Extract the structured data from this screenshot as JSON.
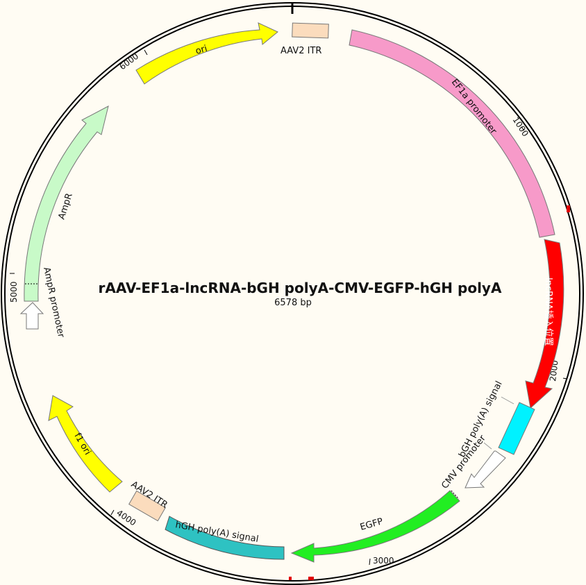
{
  "title": "rAAV-EF1a-lncRNA-bGH polyA-CMV-EGFP-hGH polyA",
  "length_label": "6578 bp",
  "length_bp": 6578,
  "ticks": [
    "1000",
    "2000",
    "3000",
    "4000",
    "5000",
    "6000"
  ],
  "features": [
    {
      "name": "AAV2 ITR",
      "start": 6540,
      "end": 6720,
      "dir": 0,
      "color": "#fbdcbd"
    },
    {
      "name": "EF1a promoter",
      "start": 190,
      "end": 1380,
      "dir": 0,
      "color": "#f79ac9"
    },
    {
      "name": "lncRNA插入位置",
      "start": 1410,
      "end": 2240,
      "dir": 1,
      "color": "#ff0000"
    },
    {
      "name": "bGH poly(A) signal",
      "start": 2240,
      "end": 2450,
      "dir": 0,
      "color": "#00f2ff"
    },
    {
      "name": "CMV promoter",
      "start": 2460,
      "end": 2650,
      "dir": 1,
      "color": "#ffffff"
    },
    {
      "name": "EGFP",
      "start": 2680,
      "end": 3400,
      "dir": 1,
      "color": "#22ee22"
    },
    {
      "name": "hGH poly(A) signal",
      "start": 3330,
      "end": 3805,
      "dir": 0,
      "color": "#2ec2c2"
    },
    {
      "name": "AAV2 ITR",
      "start": 3830,
      "end": 3980,
      "dir": 0,
      "color": "#fbdcbd"
    },
    {
      "name": "f1 ori",
      "start": 4010,
      "end": 4470,
      "dir": 1,
      "color": "#ffff00"
    },
    {
      "name": "AmpR promoter",
      "start": 4880,
      "end": 5010,
      "dir": 1,
      "color": "#ffffff"
    },
    {
      "name": "AmpR",
      "start": 5010,
      "end": 5870,
      "dir": 1,
      "color": "#c8fac8"
    },
    {
      "name": "ori",
      "start": 5940,
      "end": 6540,
      "dir": 1,
      "color": "#ffff00"
    }
  ]
}
